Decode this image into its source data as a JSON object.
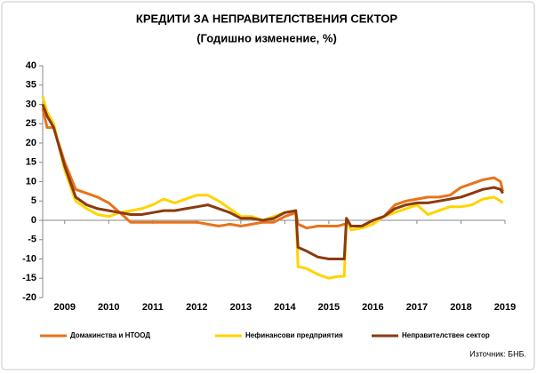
{
  "chart_data": {
    "type": "line",
    "title": "КРЕДИТИ ЗА НЕПРАВИТЕЛСТВЕНИЯ СЕКТОР",
    "subtitle": "(Годишно изменение, %)",
    "source": "Източник: БНБ.",
    "x": [
      2008.5,
      2008.6,
      2008.75,
      2009.0,
      2009.25,
      2009.5,
      2009.75,
      2010.0,
      2010.25,
      2010.5,
      2010.75,
      2011.0,
      2011.25,
      2011.5,
      2011.75,
      2012.0,
      2012.25,
      2012.5,
      2012.75,
      2013.0,
      2013.25,
      2013.5,
      2013.75,
      2014.0,
      2014.25,
      2014.3,
      2014.5,
      2014.75,
      2015.0,
      2015.2,
      2015.35,
      2015.4,
      2015.5,
      2015.75,
      2016.0,
      2016.25,
      2016.5,
      2016.75,
      2017.0,
      2017.25,
      2017.5,
      2017.75,
      2018.0,
      2018.25,
      2018.5,
      2018.75,
      2018.9,
      2018.95
    ],
    "series": [
      {
        "name": "Домакинства и НТООД",
        "color": "#e8731a",
        "values": [
          29,
          24,
          24,
          15,
          8,
          7,
          6,
          4.5,
          2,
          -0.5,
          -0.5,
          -0.5,
          -0.5,
          -0.5,
          -0.5,
          -0.5,
          -1,
          -1.5,
          -1,
          -1.5,
          -1,
          -0.5,
          -0.5,
          1,
          2,
          -1,
          -2,
          -1.5,
          -1.5,
          -1.5,
          -1,
          -1,
          -1.5,
          -1.5,
          0,
          1,
          4,
          5,
          5.5,
          6,
          6,
          6.5,
          8.5,
          9.5,
          10.5,
          11,
          10,
          7.5
        ]
      },
      {
        "name": "Нефинансови предприятия",
        "color": "#ffd400",
        "values": [
          32,
          28,
          25,
          13,
          5,
          3,
          1.5,
          1,
          2,
          2.5,
          3,
          4,
          5.5,
          4.5,
          5.5,
          6.5,
          6.5,
          5,
          3,
          1,
          1,
          0,
          1,
          2,
          2.5,
          -12,
          -12.5,
          -14,
          -15,
          -14.5,
          -14.5,
          0,
          -2.5,
          -2,
          -1,
          1,
          2,
          3,
          4,
          1.5,
          2.5,
          3.5,
          3.5,
          4,
          5.5,
          6,
          5,
          4.5
        ]
      },
      {
        "name": "Неправителствен сектор",
        "color": "#8b3a0f",
        "values": [
          30,
          27,
          24,
          14,
          6,
          4,
          3,
          2.5,
          2,
          1.5,
          1.5,
          2,
          2.5,
          2.5,
          3,
          3.5,
          4,
          3,
          2,
          0.5,
          0.5,
          0,
          0.5,
          2,
          2.5,
          -7,
          -8,
          -9.5,
          -10,
          -10,
          -10,
          0.5,
          -1.5,
          -1.5,
          0,
          1,
          3,
          4,
          4.5,
          4.5,
          5,
          5.5,
          6,
          7,
          8,
          8.5,
          8,
          7
        ]
      }
    ],
    "xlim": [
      2008.5,
      2019.0
    ],
    "xticks": [
      2009,
      2010,
      2011,
      2012,
      2013,
      2014,
      2015,
      2016,
      2017,
      2018,
      2019
    ],
    "ylim": [
      -20,
      40
    ],
    "yticks": [
      -20,
      -15,
      -10,
      -5,
      0,
      5,
      10,
      15,
      20,
      25,
      30,
      35,
      40
    ]
  }
}
